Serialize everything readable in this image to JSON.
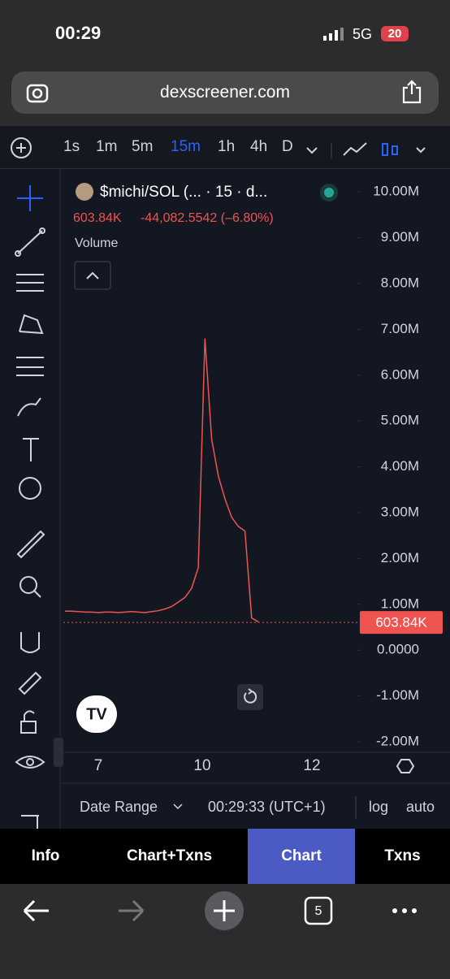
{
  "status_bar": {
    "time": "00:29",
    "network": "5G",
    "battery": "20"
  },
  "browser": {
    "url": "dexscreener.com",
    "tab_count": "5"
  },
  "toolbar": {
    "intervals": [
      "1s",
      "1m",
      "5m",
      "15m",
      "1h",
      "4h",
      "D"
    ],
    "active_index": 3
  },
  "chart": {
    "symbol": "$michi/SOL (... · 15 · d...",
    "last": "603.84K",
    "change": "-44,082.5542 (–6.80%)",
    "volume_label": "Volume",
    "ylim": [
      -2230000,
      10500000
    ],
    "yticks": [
      {
        "value": 10000000,
        "label": "10.00M"
      },
      {
        "value": 9000000,
        "label": "9.00M"
      },
      {
        "value": 8000000,
        "label": "8.00M"
      },
      {
        "value": 7000000,
        "label": "7.00M"
      },
      {
        "value": 6000000,
        "label": "6.00M"
      },
      {
        "value": 5000000,
        "label": "5.00M"
      },
      {
        "value": 4000000,
        "label": "4.00M"
      },
      {
        "value": 3000000,
        "label": "3.00M"
      },
      {
        "value": 2000000,
        "label": "2.00M"
      },
      {
        "value": 1000000,
        "label": "1.00M"
      },
      {
        "value": 0,
        "label": "0.0000"
      },
      {
        "value": -1000000,
        "label": "-1.00M"
      },
      {
        "value": -2000000,
        "label": "-2.00M"
      }
    ],
    "last_price": {
      "value": 603840,
      "label": "603.84K"
    },
    "price_color": "#ef5350",
    "price": [
      850000,
      850000,
      840000,
      830000,
      830000,
      820000,
      830000,
      830000,
      820000,
      830000,
      840000,
      830000,
      820000,
      840000,
      860000,
      900000,
      950000,
      1050000,
      1150000,
      1350000,
      1800000,
      6800000,
      4600000,
      3800000,
      3300000,
      2900000,
      2700000,
      2600000,
      700000,
      620000
    ],
    "x_labels": [
      "7",
      "10",
      "12"
    ],
    "date_range": "Date Range",
    "clock": "00:29:33 (UTC+1)",
    "log": "log",
    "auto": "auto"
  },
  "tabs": [
    "Info",
    "Chart+Txns",
    "Chart",
    "Txns"
  ],
  "active_tab": 2
}
